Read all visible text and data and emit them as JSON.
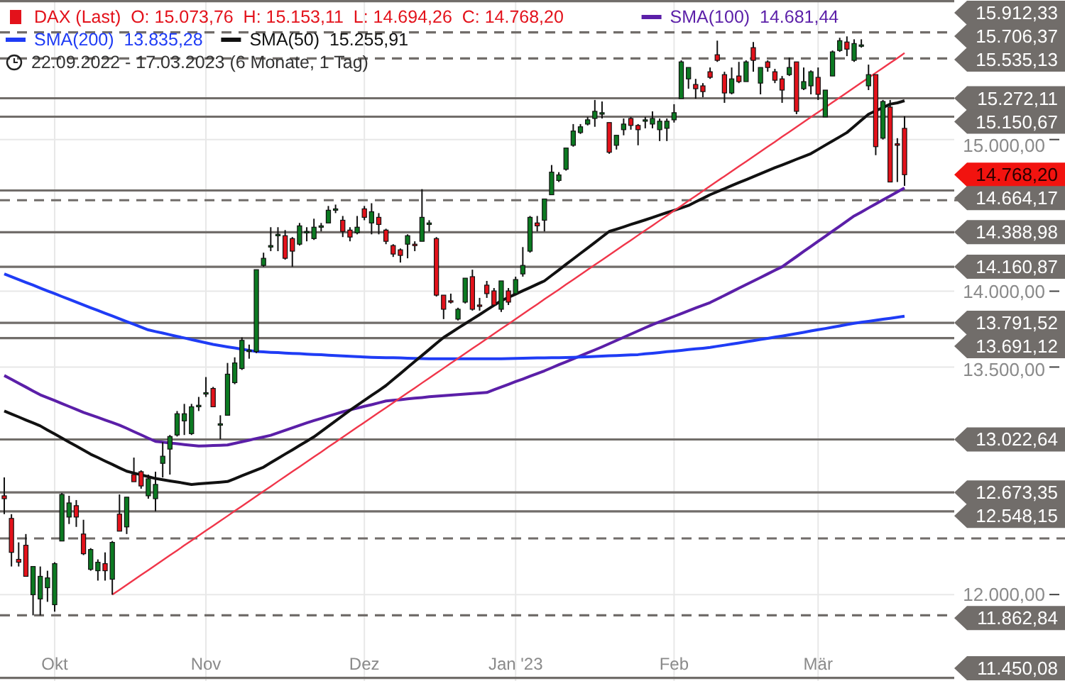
{
  "chart_data": {
    "type": "candlestick",
    "subtitle": "22.09.2022 - 17.03.2023 (6 Monate, 1 Tag)",
    "categories": [
      null,
      null,
      null,
      null,
      null,
      null,
      null,
      "Okt",
      null,
      null,
      null,
      null,
      null,
      null,
      null,
      null,
      null,
      null,
      null,
      null,
      null,
      null,
      null,
      null,
      null,
      null,
      null,
      null,
      "Nov",
      null,
      null,
      null,
      null,
      null,
      null,
      null,
      null,
      null,
      null,
      null,
      null,
      null,
      null,
      null,
      null,
      null,
      null,
      null,
      null,
      null,
      "Dez",
      null,
      null,
      null,
      null,
      null,
      null,
      null,
      null,
      null,
      null,
      null,
      null,
      null,
      null,
      null,
      null,
      null,
      null,
      null,
      null,
      "Jan '23",
      null,
      null,
      null,
      null,
      null,
      null,
      null,
      null,
      null,
      null,
      null,
      null,
      null,
      null,
      null,
      null,
      null,
      null,
      null,
      null,
      null,
      "Feb",
      null,
      null,
      null,
      null,
      null,
      null,
      null,
      null,
      null,
      null,
      null,
      null,
      null,
      null,
      null,
      null,
      null,
      null,
      null,
      "Mär",
      null,
      null,
      null,
      null,
      null,
      null,
      null,
      null,
      null,
      null,
      null,
      null
    ],
    "ylim": [
      11430,
      15920
    ],
    "yticks": [
      {
        "value": 15000,
        "label": "15.000,00"
      },
      {
        "value": 14000,
        "label": "14.000,00"
      },
      {
        "value": 13500,
        "label": "13.500,00"
      },
      {
        "value": 12000,
        "label": "12.000,00"
      }
    ],
    "grid": true,
    "legend": "top left",
    "series": [
      {
        "name": "DAX (Last)  O: 15.073,76  H: 15.153,11  L: 14.694,26  C: 14.768,20",
        "color": "#e3121b",
        "colors": [
          "#e3121b",
          "#e3121b",
          "#e3121b",
          "#e3121b",
          "#0c7a22",
          "#0c7a22",
          "#0c7a22",
          "#0c7a22",
          "#0c7a22",
          "#0c7a22",
          "#e3121b",
          "#e3121b",
          "#0c7a22",
          "#0c7a22",
          "#e3121b",
          "#0c7a22",
          "#e3121b",
          "#0c7a22",
          "#e3121b",
          "#e3121b",
          "#0c7a22",
          "#0c7a22",
          "#0c7a22",
          "#0c7a22",
          "#0c7a22",
          "#0c7a22",
          "#0c7a22",
          "#0c7a22",
          "#0c7a22",
          "#e3121b",
          "#0c7a22",
          "#0c7a22",
          "#0c7a22",
          "#0c7a22",
          "#0c7a22",
          "#0c7a22",
          "#0c7a22",
          "#0c7a22",
          "#0c7a22",
          "#e3121b",
          "#e3121b",
          "#0c7a22",
          "#0c7a22",
          "#0c7a22",
          "#0c7a22",
          "#0c7a22",
          "#0c7a22",
          "#e3121b",
          "#e3121b",
          "#0c7a22",
          "#e3121b",
          "#0c7a22",
          "#e3121b",
          "#e3121b",
          "#e3121b",
          "#e3121b",
          "#0c7a22",
          "#e3121b",
          "#0c7a22",
          "#0c7a22",
          "#e3121b",
          "#e3121b",
          "#e3121b",
          "#0c7a22",
          "#0c7a22",
          "#e3121b",
          "#e3121b",
          "#e3121b",
          "#e3121b",
          "#0c7a22",
          "#e3121b",
          "#0c7a22",
          "#0c7a22",
          "#0c7a22",
          "#e3121b",
          "#0c7a22",
          "#0c7a22",
          "#0c7a22",
          "#0c7a22",
          "#0c7a22",
          "#0c7a22",
          "#0c7a22",
          "#0c7a22",
          "#0c7a22",
          "#e3121b",
          "#0c7a22",
          "#0c7a22",
          "#e3121b",
          "#e3121b",
          "#0c7a22",
          "#0c7a22",
          "#0c7a22",
          "#0c7a22",
          "#0c7a22",
          "#0c7a22",
          "#0c7a22",
          "#e3121b",
          "#e3121b",
          "#e3121b",
          "#e3121b",
          "#e3121b",
          "#0c7a22",
          "#e3121b",
          "#0c7a22",
          "#e3121b",
          "#0c7a22",
          "#e3121b",
          "#e3121b",
          "#e3121b",
          "#0c7a22",
          "#e3121b",
          "#0c7a22",
          "#0c7a22",
          "#e3121b",
          "#0c7a22",
          "#0c7a22",
          "#0c7a22",
          "#e3121b",
          "#0c7a22",
          "#0c7a22",
          "#0c7a22",
          "#e3121b",
          "#0c7a22",
          "#e3121b",
          "#e3121b",
          "#e3121b"
        ],
        "ohlc": [
          [
            12651,
            12772,
            12530,
            12632
          ],
          [
            12502,
            12530,
            12185,
            12278
          ],
          [
            12232,
            12344,
            12185,
            12213
          ],
          [
            12325,
            12399,
            12120,
            12120
          ],
          [
            11999,
            12185,
            11863,
            12185
          ],
          [
            11971,
            12185,
            11863,
            12120
          ],
          [
            12045,
            12157,
            11952,
            12110
          ],
          [
            11933,
            12213,
            11887,
            12204
          ],
          [
            12353,
            12670,
            12353,
            12660
          ],
          [
            12511,
            12651,
            12465,
            12604
          ],
          [
            12586,
            12623,
            12446,
            12511
          ],
          [
            12399,
            12493,
            12260,
            12269
          ],
          [
            12166,
            12306,
            12157,
            12297
          ],
          [
            12157,
            12232,
            12092,
            12213
          ],
          [
            12204,
            12278,
            12092,
            12157
          ],
          [
            12101,
            12353,
            11999,
            12344
          ],
          [
            12530,
            12660,
            12418,
            12418
          ],
          [
            12446,
            12642,
            12399,
            12642
          ],
          [
            12791,
            12903,
            12744,
            12744
          ],
          [
            12810,
            12819,
            12698,
            12716
          ],
          [
            12651,
            12791,
            12632,
            12763
          ],
          [
            12632,
            12810,
            12549,
            12726
          ],
          [
            12865,
            13005,
            12772,
            12912
          ],
          [
            12959,
            13052,
            12791,
            13042
          ],
          [
            13052,
            13210,
            13042,
            13192
          ],
          [
            13145,
            13257,
            13052,
            13192
          ],
          [
            13061,
            13257,
            13052,
            13238
          ],
          [
            13238,
            13303,
            13210,
            13248
          ],
          [
            13322,
            13434,
            13303,
            13331
          ],
          [
            13359,
            13369,
            13238,
            13238
          ],
          [
            13117,
            13182,
            13024,
            13126
          ],
          [
            13182,
            13527,
            13182,
            13453
          ],
          [
            13397,
            13564,
            13387,
            13527
          ],
          [
            13490,
            13695,
            13481,
            13676
          ],
          [
            13602,
            13648,
            13555,
            13611
          ],
          [
            13602,
            14142,
            13592,
            14142
          ],
          [
            14170,
            14254,
            14161,
            14217
          ],
          [
            14291,
            14422,
            14264,
            14301
          ],
          [
            14366,
            14422,
            14264,
            14375
          ],
          [
            14366,
            14403,
            14208,
            14217
          ],
          [
            14347,
            14357,
            14161,
            14264
          ],
          [
            14310,
            14450,
            14301,
            14431
          ],
          [
            14385,
            14422,
            14329,
            14394
          ],
          [
            14347,
            14478,
            14338,
            14422
          ],
          [
            14422,
            14450,
            14394,
            14431
          ],
          [
            14450,
            14562,
            14450,
            14534
          ],
          [
            14534,
            14571,
            14515,
            14543
          ],
          [
            14468,
            14496,
            14357,
            14394
          ],
          [
            14403,
            14422,
            14329,
            14357
          ],
          [
            14385,
            14496,
            14375,
            14422
          ],
          [
            14543,
            14562,
            14468,
            14487
          ],
          [
            14450,
            14580,
            14375,
            14524
          ],
          [
            14487,
            14515,
            14375,
            14440
          ],
          [
            14403,
            14412,
            14310,
            14329
          ],
          [
            14301,
            14310,
            14226,
            14245
          ],
          [
            14273,
            14282,
            14189,
            14236
          ],
          [
            14310,
            14375,
            14217,
            14366
          ],
          [
            14310,
            14329,
            14264,
            14301
          ],
          [
            14329,
            14673,
            14329,
            14487
          ],
          [
            14440,
            14468,
            14394,
            14450
          ],
          [
            14347,
            14357,
            13965,
            13974
          ],
          [
            13974,
            13974,
            13816,
            13881
          ],
          [
            13937,
            13984,
            13919,
            13928
          ],
          [
            13816,
            13891,
            13807,
            13881
          ],
          [
            13928,
            14086,
            13919,
            14086
          ],
          [
            14096,
            14142,
            13872,
            13881
          ],
          [
            13909,
            13956,
            13872,
            13900
          ],
          [
            14040,
            14068,
            13956,
            13984
          ],
          [
            14002,
            14021,
            13900,
            13909
          ],
          [
            13881,
            14068,
            13863,
            14068
          ],
          [
            14002,
            14021,
            13909,
            13928
          ],
          [
            13984,
            14096,
            13974,
            14077
          ],
          [
            14114,
            14291,
            14096,
            14170
          ],
          [
            14264,
            14496,
            14254,
            14487
          ],
          [
            14450,
            14496,
            14394,
            14431
          ],
          [
            14468,
            14608,
            14394,
            14608
          ],
          [
            14636,
            14832,
            14636,
            14785
          ],
          [
            14730,
            14785,
            14720,
            14767
          ],
          [
            14804,
            14944,
            14795,
            14944
          ],
          [
            14962,
            15102,
            14953,
            15056
          ],
          [
            15046,
            15102,
            15037,
            15084
          ],
          [
            15102,
            15149,
            15093,
            15130
          ],
          [
            15139,
            15261,
            15084,
            15186
          ],
          [
            15167,
            15251,
            15139,
            15177
          ],
          [
            15112,
            15112,
            14906,
            14916
          ],
          [
            14962,
            15028,
            14934,
            15028
          ],
          [
            15065,
            15139,
            15028,
            15102
          ],
          [
            15139,
            15149,
            15065,
            15093
          ],
          [
            15093,
            15102,
            14962,
            15065
          ],
          [
            15121,
            15149,
            15074,
            15130
          ],
          [
            15102,
            15186,
            15074,
            15139
          ],
          [
            15065,
            15139,
            14990,
            15121
          ],
          [
            15074,
            15139,
            14990,
            15121
          ],
          [
            15130,
            15233,
            15112,
            15177
          ],
          [
            15270,
            15522,
            15270,
            15512
          ],
          [
            15400,
            15475,
            15335,
            15475
          ],
          [
            15363,
            15400,
            15270,
            15335
          ],
          [
            15354,
            15372,
            15279,
            15316
          ],
          [
            15447,
            15475,
            15400,
            15410
          ],
          [
            15559,
            15652,
            15512,
            15522
          ],
          [
            15428,
            15447,
            15242,
            15307
          ],
          [
            15307,
            15475,
            15298,
            15400
          ],
          [
            15419,
            15512,
            15372,
            15382
          ],
          [
            15382,
            15522,
            15382,
            15512
          ],
          [
            15606,
            15643,
            15447,
            15522
          ],
          [
            15372,
            15475,
            15298,
            15475
          ],
          [
            15512,
            15522,
            15447,
            15475
          ],
          [
            15447,
            15466,
            15372,
            15391
          ],
          [
            15400,
            15419,
            15242,
            15326
          ],
          [
            15428,
            15540,
            15419,
            15475
          ],
          [
            15512,
            15512,
            15167,
            15186
          ],
          [
            15335,
            15475,
            15326,
            15382
          ],
          [
            15354,
            15456,
            15298,
            15447
          ],
          [
            15410,
            15475,
            15261,
            15298
          ],
          [
            15149,
            15326,
            15149,
            15326
          ],
          [
            15419,
            15587,
            15419,
            15578
          ],
          [
            15587,
            15671,
            15578,
            15652
          ],
          [
            15643,
            15680,
            15550,
            15596
          ],
          [
            15522,
            15661,
            15512,
            15633
          ],
          [
            15615,
            15661,
            15606,
            15624
          ],
          [
            15354,
            15494,
            15326,
            15428
          ],
          [
            15428,
            15428,
            14897,
            14953
          ],
          [
            15009,
            15261,
            15000,
            15251
          ],
          [
            15214,
            15261,
            14720,
            14720
          ],
          [
            14972,
            15009,
            14720,
            14962
          ],
          [
            15073.76,
            15153.11,
            14694.26,
            14768.2
          ]
        ]
      },
      {
        "type": "line",
        "name": "SMA(100)  14.681,44",
        "color": "#5b1fa8",
        "values": [
          13444,
          13419,
          13393,
          13368,
          13342,
          13317,
          13298,
          13279,
          13259,
          13240,
          13221,
          13201,
          13184,
          13168,
          13151,
          13134,
          13117,
          13096,
          13074,
          13053,
          13031,
          13010,
          13005,
          12999,
          12994,
          12989,
          12984,
          12979,
          12981,
          12983,
          12984,
          12986,
          12997,
          13007,
          13018,
          13029,
          13039,
          13050,
          13066,
          13083,
          13099,
          13116,
          13132,
          13147,
          13161,
          13176,
          13190,
          13205,
          13217,
          13229,
          13241,
          13252,
          13264,
          13276,
          13281,
          13285,
          13290,
          13295,
          13299,
          13304,
          13308,
          13311,
          13315,
          13318,
          13322,
          13325,
          13329,
          13332,
          13350,
          13368,
          13386,
          13404,
          13421,
          13439,
          13457,
          13475,
          13495,
          13515,
          13534,
          13554,
          13574,
          13594,
          13613,
          13633,
          13654,
          13675,
          13696,
          13717,
          13738,
          13759,
          13780,
          13798,
          13816,
          13834,
          13852,
          13871,
          13889,
          13907,
          13925,
          13949,
          13972,
          13996,
          14020,
          14043,
          14067,
          14090,
          14114,
          14138,
          14161,
          14195,
          14228,
          14262,
          14295,
          14329,
          14362,
          14396,
          14429,
          14463,
          14496,
          14522,
          14549,
          14575,
          14602,
          14628,
          14655,
          14681
        ]
      },
      {
        "type": "line",
        "name": "SMA(200)  13.835,28",
        "color": "#1f3cf5",
        "values": [
          14114,
          14095,
          14077,
          14058,
          14040,
          14021,
          14002,
          13984,
          13965,
          13947,
          13928,
          13910,
          13891,
          13873,
          13855,
          13837,
          13818,
          13800,
          13782,
          13763,
          13745,
          13734,
          13724,
          13713,
          13702,
          13692,
          13681,
          13670,
          13660,
          13649,
          13641,
          13633,
          13626,
          13618,
          13610,
          13602,
          13600,
          13597,
          13595,
          13592,
          13590,
          13588,
          13585,
          13583,
          13581,
          13578,
          13576,
          13573,
          13571,
          13569,
          13566,
          13564,
          13563,
          13562,
          13561,
          13560,
          13558,
          13557,
          13556,
          13555,
          13555,
          13555,
          13555,
          13555,
          13555,
          13555,
          13555,
          13555,
          13555,
          13555,
          13556,
          13557,
          13558,
          13559,
          13560,
          13560,
          13561,
          13562,
          13563,
          13564,
          13566,
          13568,
          13570,
          13572,
          13574,
          13576,
          13578,
          13580,
          13582,
          13587,
          13591,
          13596,
          13601,
          13605,
          13610,
          13615,
          13620,
          13624,
          13629,
          13637,
          13644,
          13652,
          13659,
          13667,
          13674,
          13682,
          13689,
          13697,
          13704,
          13712,
          13721,
          13729,
          13738,
          13746,
          13754,
          13763,
          13771,
          13780,
          13788,
          13795,
          13801,
          13808,
          13815,
          13821,
          13828,
          13835
        ]
      },
      {
        "type": "line",
        "name": "SMA(50)  15.255,91",
        "color": "#111111",
        "values": [
          13210,
          13190,
          13171,
          13151,
          13132,
          13112,
          13085,
          13059,
          13032,
          13005,
          12979,
          12952,
          12925,
          12903,
          12880,
          12858,
          12835,
          12813,
          12801,
          12789,
          12777,
          12765,
          12757,
          12749,
          12742,
          12734,
          12726,
          12730,
          12734,
          12737,
          12741,
          12745,
          12764,
          12783,
          12802,
          12821,
          12840,
          12869,
          12897,
          12926,
          12954,
          12983,
          13011,
          13040,
          13075,
          13110,
          13145,
          13180,
          13215,
          13248,
          13280,
          13313,
          13345,
          13378,
          13418,
          13457,
          13497,
          13537,
          13576,
          13616,
          13656,
          13695,
          13725,
          13756,
          13786,
          13816,
          13846,
          13877,
          13907,
          13937,
          13959,
          13981,
          14003,
          14024,
          14046,
          14068,
          14104,
          14140,
          14177,
          14213,
          14249,
          14285,
          14321,
          14358,
          14394,
          14409,
          14424,
          14440,
          14455,
          14470,
          14486,
          14502,
          14518,
          14533,
          14549,
          14565,
          14589,
          14612,
          14636,
          14656,
          14676,
          14696,
          14716,
          14735,
          14755,
          14775,
          14795,
          14814,
          14832,
          14851,
          14870,
          14888,
          14907,
          14935,
          14963,
          14990,
          15018,
          15046,
          15086,
          15127,
          15167,
          15189,
          15211,
          15233,
          15242,
          15256
        ]
      },
      {
        "type": "line",
        "color": "#f0364a",
        "values": [
          null,
          null,
          null,
          null,
          null,
          null,
          null,
          null,
          null,
          null,
          null,
          null,
          null,
          null,
          null,
          11999,
          12031,
          12064,
          12096,
          12129,
          12161,
          12194,
          12226,
          12259,
          12291,
          12324,
          12356,
          12389,
          12421,
          12453,
          12486,
          12518,
          12551,
          12583,
          12616,
          12648,
          12681,
          12713,
          12746,
          12778,
          12811,
          12843,
          12875,
          12908,
          12940,
          12973,
          13005,
          13038,
          13070,
          13103,
          13135,
          13168,
          13200,
          13232,
          13265,
          13297,
          13330,
          13362,
          13395,
          13427,
          13460,
          13492,
          13525,
          13557,
          13590,
          13622,
          13654,
          13687,
          13719,
          13752,
          13784,
          13817,
          13849,
          13882,
          13914,
          13947,
          13979,
          14011,
          14044,
          14076,
          14109,
          14141,
          14174,
          14206,
          14239,
          14271,
          14304,
          14336,
          14369,
          14401,
          14433,
          14466,
          14498,
          14531,
          14563,
          14596,
          14628,
          14661,
          14693,
          14726,
          14758,
          14790,
          14823,
          14855,
          14888,
          14920,
          14953,
          14985,
          15018,
          15050,
          15083,
          15115,
          15148,
          15180,
          15212,
          15245,
          15277,
          15310,
          15342,
          15375,
          15407,
          15440,
          15472,
          15505,
          15537,
          15570
        ]
      }
    ],
    "ref_lines": [
      {
        "axis": "y",
        "value": 15912.33,
        "label": "15.912,33",
        "line_style": "solid",
        "color": "#716d6a"
      },
      {
        "axis": "y",
        "value": 15706.37,
        "label": "15.706,37",
        "line_style": "dashed",
        "color": "#716d6a"
      },
      {
        "axis": "y",
        "value": 15535.13,
        "label": "15.535,13",
        "line_style": "dashed",
        "color": "#716d6a"
      },
      {
        "axis": "y",
        "value": 15272.11,
        "label": "15.272,11",
        "line_style": "solid",
        "color": "#716d6a"
      },
      {
        "axis": "y",
        "value": 15150.67,
        "label": "15.150,67",
        "line_style": "solid",
        "color": "#716d6a"
      },
      {
        "axis": "y",
        "value": 14664.17,
        "label": "14.664,17",
        "line_style": "solid",
        "color": "#716d6a"
      },
      {
        "axis": "y",
        "value": 14600,
        "label": null,
        "line_style": "dashed",
        "color": "#716d6a"
      },
      {
        "axis": "y",
        "value": 14388.98,
        "label": "14.388,98",
        "line_style": "solid",
        "color": "#716d6a"
      },
      {
        "axis": "y",
        "value": 14160.87,
        "label": "14.160,87",
        "line_style": "solid",
        "color": "#716d6a"
      },
      {
        "axis": "y",
        "value": 13791.52,
        "label": "13.791,52",
        "line_style": "solid",
        "color": "#716d6a"
      },
      {
        "axis": "y",
        "value": 13691.12,
        "label": "13.691,12",
        "line_style": "solid",
        "color": "#716d6a"
      },
      {
        "axis": "y",
        "value": 13022.64,
        "label": "13.022,64",
        "line_style": "solid",
        "color": "#716d6a"
      },
      {
        "axis": "y",
        "value": 12673.35,
        "label": "12.673,35",
        "line_style": "solid",
        "color": "#716d6a"
      },
      {
        "axis": "y",
        "value": 12548.15,
        "label": "12.548,15",
        "line_style": "solid",
        "color": "#716d6a"
      },
      {
        "axis": "y",
        "value": 12370,
        "label": null,
        "line_style": "dashed",
        "color": "#716d6a"
      },
      {
        "axis": "y",
        "value": 11862.84,
        "label": "11.862,84",
        "line_style": "dashed",
        "color": "#716d6a"
      },
      {
        "axis": "y",
        "value": 11450.08,
        "label": "11.450,08",
        "line_style": "solid",
        "color": "#716d6a"
      }
    ],
    "annotations": [
      "14.768,20"
    ]
  }
}
